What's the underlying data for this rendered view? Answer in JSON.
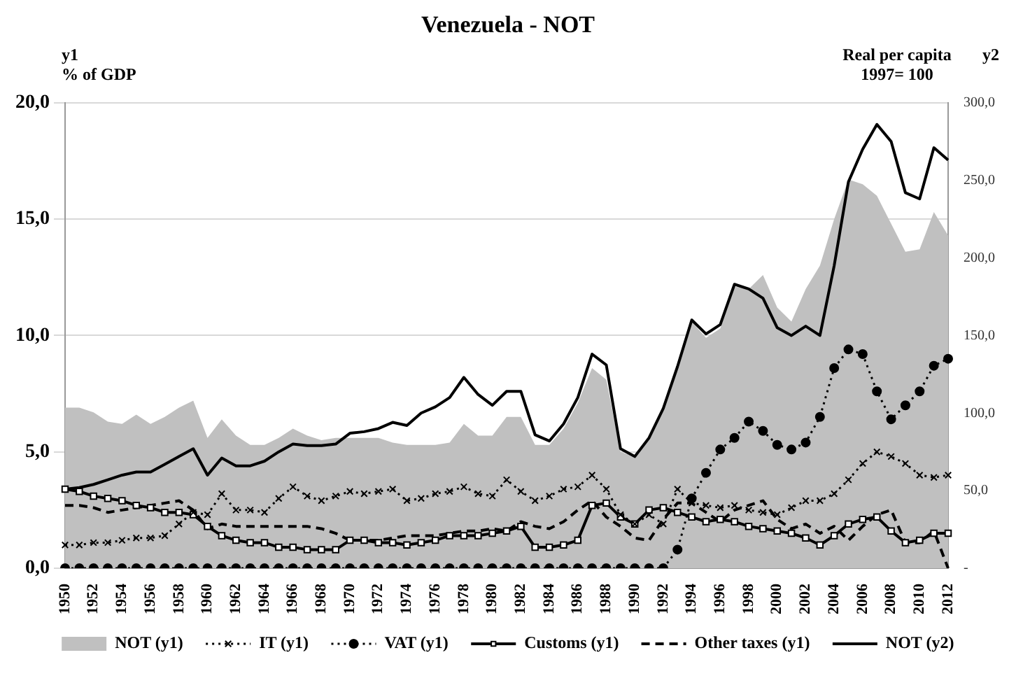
{
  "chart_data": {
    "type": "line",
    "title": "Venezuela - NOT",
    "ylabel": "% of GDP",
    "y2label": "Real per capita 1997= 100",
    "annotations": [
      "y1",
      "y2"
    ],
    "categories": [
      "1950",
      null,
      "1952",
      null,
      "1954",
      null,
      "1956",
      null,
      "1958",
      null,
      "1960",
      null,
      "1962",
      null,
      "1964",
      null,
      "1966",
      null,
      "1968",
      null,
      "1970",
      null,
      "1972",
      null,
      "1974",
      null,
      "1976",
      null,
      "1978",
      null,
      "1980",
      null,
      "1982",
      null,
      "1984",
      null,
      "1986",
      null,
      "1988",
      null,
      "1990",
      null,
      "1992",
      null,
      "1994",
      null,
      "1996",
      null,
      "1998",
      null,
      "2000",
      null,
      "2002",
      null,
      "2004",
      null,
      "2006",
      null,
      "2008",
      null,
      "2010",
      null,
      "2012"
    ],
    "series": [
      {
        "name": "NOT (y1)",
        "type": "area",
        "color": "#c0c0c0",
        "values": [
          6.9,
          6.9,
          6.7,
          6.3,
          6.2,
          6.6,
          6.2,
          6.5,
          6.9,
          7.2,
          5.6,
          6.4,
          5.7,
          5.3,
          5.3,
          5.6,
          6.0,
          5.7,
          5.5,
          5.6,
          5.6,
          5.6,
          5.6,
          5.4,
          5.3,
          5.3,
          5.3,
          5.4,
          6.2,
          5.7,
          5.7,
          6.5,
          6.5,
          5.3,
          5.3,
          6.0,
          7.1,
          8.6,
          8.1,
          5.0,
          4.8,
          5.5,
          6.8,
          8.7,
          10.6,
          9.9,
          10.3,
          12.1,
          12.0,
          12.6,
          11.2,
          10.6,
          12.0,
          13.0,
          15.0,
          16.7,
          16.5,
          16.0,
          14.8,
          13.6,
          13.7,
          15.3,
          14.3
        ]
      },
      {
        "name": "IT (y1)",
        "type": "line",
        "color": "#000000",
        "marker": "cross",
        "line_style": "dotted",
        "values": [
          1.0,
          1.0,
          1.1,
          1.1,
          1.2,
          1.3,
          1.3,
          1.4,
          1.9,
          2.4,
          2.3,
          3.2,
          2.5,
          2.5,
          2.4,
          3.0,
          3.5,
          3.1,
          2.9,
          3.1,
          3.3,
          3.2,
          3.3,
          3.4,
          2.9,
          3.0,
          3.2,
          3.3,
          3.5,
          3.2,
          3.1,
          3.8,
          3.3,
          2.9,
          3.1,
          3.4,
          3.5,
          4.0,
          3.4,
          2.3,
          1.9,
          2.3,
          1.9,
          3.4,
          2.8,
          2.7,
          2.6,
          2.7,
          2.5,
          2.4,
          2.3,
          2.6,
          2.9,
          2.9,
          3.2,
          3.8,
          4.5,
          5.0,
          4.8,
          4.5,
          4.0,
          3.9,
          4.0
        ]
      },
      {
        "name": "VAT (y1)",
        "type": "line",
        "color": "#000000",
        "marker": "circle",
        "line_style": "dotted",
        "values": [
          0,
          0,
          0,
          0,
          0,
          0,
          0,
          0,
          0,
          0,
          0,
          0,
          0,
          0,
          0,
          0,
          0,
          0,
          0,
          0,
          0,
          0,
          0,
          0,
          0,
          0,
          0,
          0,
          0,
          0,
          0,
          0,
          0,
          0,
          0,
          0,
          0,
          0,
          0,
          0,
          0,
          0,
          0,
          0.8,
          3.0,
          4.1,
          5.1,
          5.6,
          6.3,
          5.9,
          5.3,
          5.1,
          5.4,
          6.5,
          8.6,
          9.4,
          9.2,
          7.6,
          6.4,
          7.0,
          7.6,
          8.7,
          9.0
        ]
      },
      {
        "name": "Customs (y1)",
        "type": "line",
        "color": "#000000",
        "marker": "square",
        "line_style": "solid",
        "values": [
          3.4,
          3.3,
          3.1,
          3.0,
          2.9,
          2.7,
          2.6,
          2.4,
          2.4,
          2.3,
          1.8,
          1.4,
          1.2,
          1.1,
          1.1,
          0.9,
          0.9,
          0.8,
          0.8,
          0.8,
          1.2,
          1.2,
          1.1,
          1.1,
          1.0,
          1.1,
          1.2,
          1.4,
          1.4,
          1.4,
          1.5,
          1.6,
          1.8,
          0.9,
          0.9,
          1.0,
          1.2,
          2.7,
          2.8,
          2.2,
          1.9,
          2.5,
          2.6,
          2.4,
          2.2,
          2.0,
          2.1,
          2.0,
          1.8,
          1.7,
          1.6,
          1.5,
          1.3,
          1.0,
          1.4,
          1.9,
          2.1,
          2.2,
          1.6,
          1.1,
          1.2,
          1.5,
          1.5
        ]
      },
      {
        "name": "Other taxes (y1)",
        "type": "line",
        "color": "#000000",
        "marker": "none",
        "line_style": "dashed",
        "values": [
          2.7,
          2.7,
          2.6,
          2.4,
          2.5,
          2.6,
          2.7,
          2.8,
          2.9,
          2.5,
          1.7,
          1.9,
          1.8,
          1.8,
          1.8,
          1.8,
          1.8,
          1.8,
          1.7,
          1.5,
          1.2,
          1.2,
          1.2,
          1.3,
          1.4,
          1.4,
          1.4,
          1.5,
          1.6,
          1.6,
          1.7,
          1.6,
          2.0,
          1.8,
          1.7,
          2.0,
          2.5,
          2.9,
          2.2,
          1.8,
          1.3,
          1.2,
          2.1,
          2.8,
          2.8,
          2.4,
          2.0,
          2.5,
          2.7,
          2.9,
          2.1,
          1.7,
          1.9,
          1.5,
          1.8,
          1.2,
          1.8,
          2.3,
          2.5,
          1.1,
          1.1,
          1.6,
          0.0
        ]
      },
      {
        "name": "NOT (y2)",
        "type": "line",
        "axis": "y2",
        "color": "#000000",
        "marker": "none",
        "line_style": "solid",
        "values": [
          51,
          52,
          54,
          57,
          60,
          62,
          62,
          67,
          72,
          77,
          60,
          71,
          66,
          66,
          69,
          75,
          80,
          79,
          79,
          80,
          87,
          88,
          90,
          94,
          92,
          100,
          104,
          110,
          123,
          112,
          105,
          114,
          114,
          86,
          82,
          93,
          110,
          138,
          131,
          77,
          72,
          84,
          103,
          130,
          160,
          151,
          157,
          183,
          180,
          174,
          155,
          150,
          156,
          150,
          195,
          249,
          270,
          286,
          275,
          242,
          238,
          271,
          263
        ]
      }
    ],
    "ylim": [
      0,
      20
    ],
    "yticks": [
      {
        "value": 0,
        "label": "0,0"
      },
      {
        "value": 5,
        "label": "5,0"
      },
      {
        "value": 10,
        "label": "10,0"
      },
      {
        "value": 15,
        "label": "15,0"
      },
      {
        "value": 20,
        "label": "20,0"
      }
    ],
    "y2lim": [
      0,
      300
    ],
    "y2ticks": [
      {
        "value": 0,
        "label": "-"
      },
      {
        "value": 50,
        "label": "50,0"
      },
      {
        "value": 100,
        "label": "100,0"
      },
      {
        "value": 150,
        "label": "150,0"
      },
      {
        "value": 200,
        "label": "200,0"
      },
      {
        "value": 250,
        "label": "250,0"
      },
      {
        "value": 300,
        "label": "300,0"
      }
    ],
    "grid": "y",
    "legend": "bottom"
  }
}
